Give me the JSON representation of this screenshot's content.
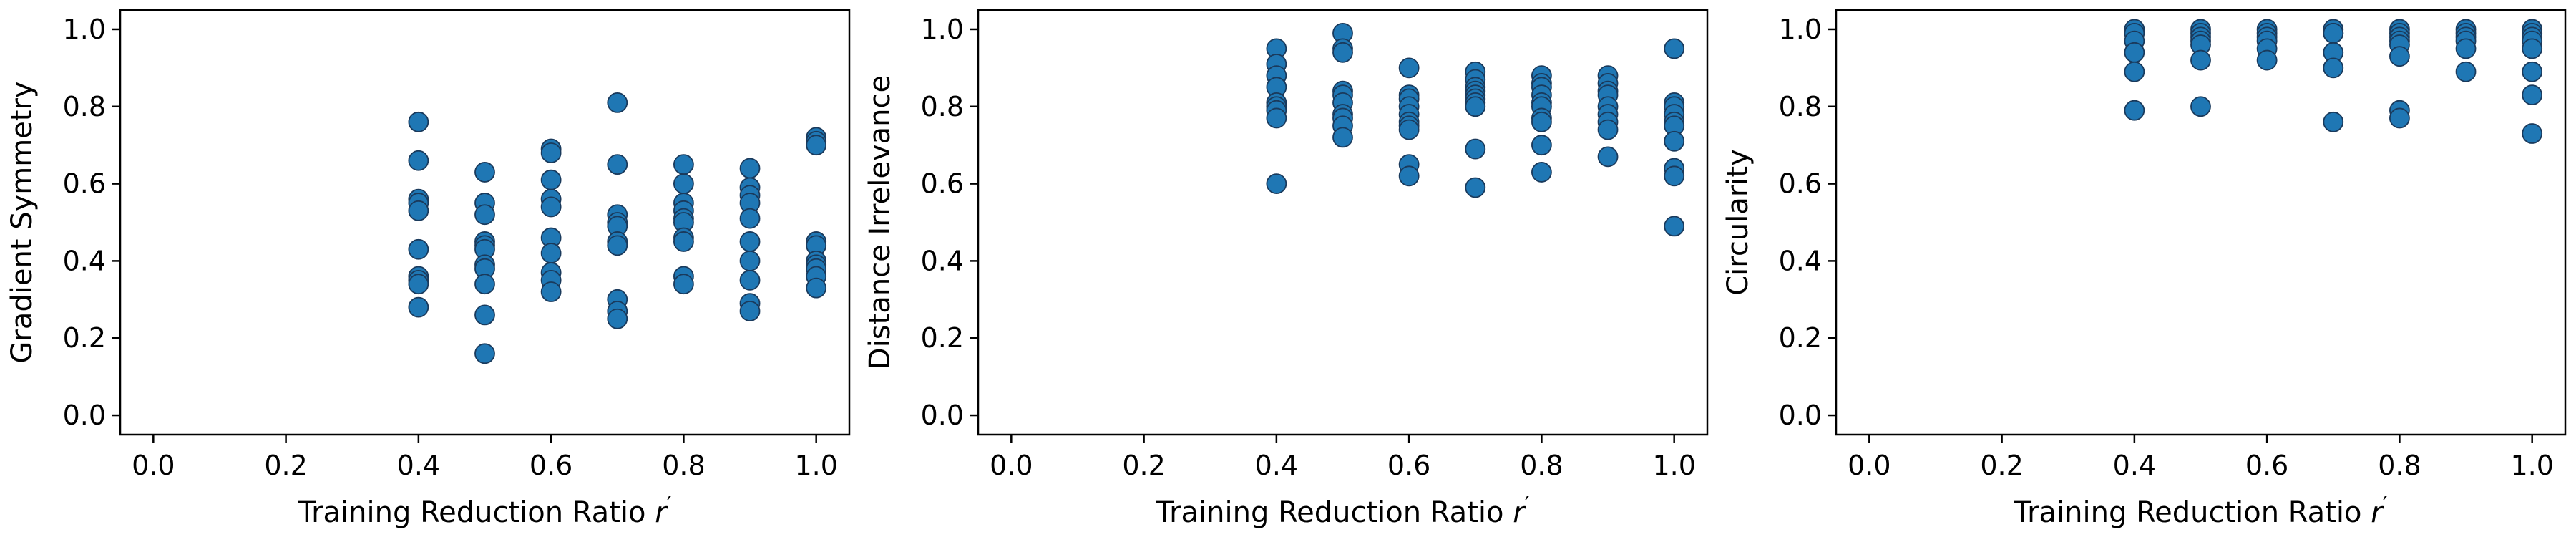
{
  "chart_data": [
    {
      "type": "scatter",
      "xlabel": "Training Reduction Ratio",
      "xlabel_symbol": "r",
      "xlabel_prime": "′",
      "ylabel": "Gradient Symmetry",
      "xlim": [
        -0.05,
        1.05
      ],
      "ylim": [
        -0.05,
        1.05
      ],
      "xticks": [
        "0.0",
        "0.2",
        "0.4",
        "0.6",
        "0.8",
        "1.0"
      ],
      "yticks": [
        "0.0",
        "0.2",
        "0.4",
        "0.6",
        "0.8",
        "1.0"
      ],
      "grid": false,
      "color": "#1f77b4",
      "points": [
        {
          "x": 0.4,
          "ys": [
            0.76,
            0.66,
            0.56,
            0.55,
            0.53,
            0.43,
            0.36,
            0.35,
            0.34,
            0.28
          ]
        },
        {
          "x": 0.5,
          "ys": [
            0.63,
            0.55,
            0.52,
            0.45,
            0.44,
            0.43,
            0.39,
            0.38,
            0.34,
            0.26,
            0.16
          ]
        },
        {
          "x": 0.6,
          "ys": [
            0.69,
            0.68,
            0.61,
            0.56,
            0.54,
            0.46,
            0.42,
            0.37,
            0.35,
            0.32
          ]
        },
        {
          "x": 0.7,
          "ys": [
            0.81,
            0.65,
            0.52,
            0.5,
            0.49,
            0.45,
            0.44,
            0.3,
            0.27,
            0.25
          ]
        },
        {
          "x": 0.8,
          "ys": [
            0.65,
            0.6,
            0.55,
            0.53,
            0.51,
            0.5,
            0.46,
            0.45,
            0.36,
            0.34
          ]
        },
        {
          "x": 0.9,
          "ys": [
            0.64,
            0.59,
            0.57,
            0.55,
            0.51,
            0.45,
            0.4,
            0.35,
            0.29,
            0.27
          ]
        },
        {
          "x": 1.0,
          "ys": [
            0.72,
            0.71,
            0.7,
            0.45,
            0.44,
            0.4,
            0.39,
            0.38,
            0.36,
            0.33
          ]
        }
      ]
    },
    {
      "type": "scatter",
      "xlabel": "Training Reduction Ratio",
      "xlabel_symbol": "r",
      "xlabel_prime": "′",
      "ylabel": "Distance Irrelevance",
      "xlim": [
        -0.05,
        1.05
      ],
      "ylim": [
        -0.05,
        1.05
      ],
      "xticks": [
        "0.0",
        "0.2",
        "0.4",
        "0.6",
        "0.8",
        "1.0"
      ],
      "yticks": [
        "0.0",
        "0.2",
        "0.4",
        "0.6",
        "0.8",
        "1.0"
      ],
      "grid": false,
      "color": "#1f77b4",
      "points": [
        {
          "x": 0.4,
          "ys": [
            0.95,
            0.91,
            0.88,
            0.85,
            0.81,
            0.8,
            0.79,
            0.77,
            0.6
          ]
        },
        {
          "x": 0.5,
          "ys": [
            0.99,
            0.95,
            0.94,
            0.84,
            0.83,
            0.81,
            0.78,
            0.77,
            0.75,
            0.72
          ]
        },
        {
          "x": 0.6,
          "ys": [
            0.9,
            0.83,
            0.82,
            0.8,
            0.78,
            0.76,
            0.75,
            0.74,
            0.65,
            0.62
          ]
        },
        {
          "x": 0.7,
          "ys": [
            0.89,
            0.87,
            0.85,
            0.84,
            0.83,
            0.82,
            0.81,
            0.8,
            0.69,
            0.59
          ]
        },
        {
          "x": 0.8,
          "ys": [
            0.88,
            0.86,
            0.85,
            0.83,
            0.81,
            0.8,
            0.77,
            0.76,
            0.7,
            0.63
          ]
        },
        {
          "x": 0.9,
          "ys": [
            0.88,
            0.86,
            0.84,
            0.83,
            0.8,
            0.78,
            0.76,
            0.74,
            0.67
          ]
        },
        {
          "x": 1.0,
          "ys": [
            0.95,
            0.81,
            0.8,
            0.78,
            0.76,
            0.75,
            0.71,
            0.64,
            0.62,
            0.49
          ]
        }
      ]
    },
    {
      "type": "scatter",
      "xlabel": "Training Reduction Ratio",
      "xlabel_symbol": "r",
      "xlabel_prime": "′",
      "ylabel": "Circularity",
      "xlim": [
        -0.05,
        1.05
      ],
      "ylim": [
        -0.05,
        1.05
      ],
      "xticks": [
        "0.0",
        "0.2",
        "0.4",
        "0.6",
        "0.8",
        "1.0"
      ],
      "yticks": [
        "0.0",
        "0.2",
        "0.4",
        "0.6",
        "0.8",
        "1.0"
      ],
      "grid": false,
      "color": "#1f77b4",
      "points": [
        {
          "x": 0.4,
          "ys": [
            1.0,
            0.99,
            0.97,
            0.94,
            0.89,
            0.79
          ]
        },
        {
          "x": 0.5,
          "ys": [
            1.0,
            0.99,
            0.98,
            0.97,
            0.96,
            0.92,
            0.8
          ]
        },
        {
          "x": 0.6,
          "ys": [
            1.0,
            0.99,
            0.98,
            0.97,
            0.95,
            0.92
          ]
        },
        {
          "x": 0.7,
          "ys": [
            1.0,
            0.99,
            0.99,
            0.94,
            0.9,
            0.76
          ]
        },
        {
          "x": 0.8,
          "ys": [
            1.0,
            0.99,
            0.98,
            0.97,
            0.96,
            0.93,
            0.79,
            0.77
          ]
        },
        {
          "x": 0.9,
          "ys": [
            1.0,
            0.99,
            0.98,
            0.97,
            0.95,
            0.89
          ]
        },
        {
          "x": 1.0,
          "ys": [
            1.0,
            0.99,
            0.98,
            0.97,
            0.95,
            0.89,
            0.83,
            0.73
          ]
        }
      ]
    }
  ]
}
